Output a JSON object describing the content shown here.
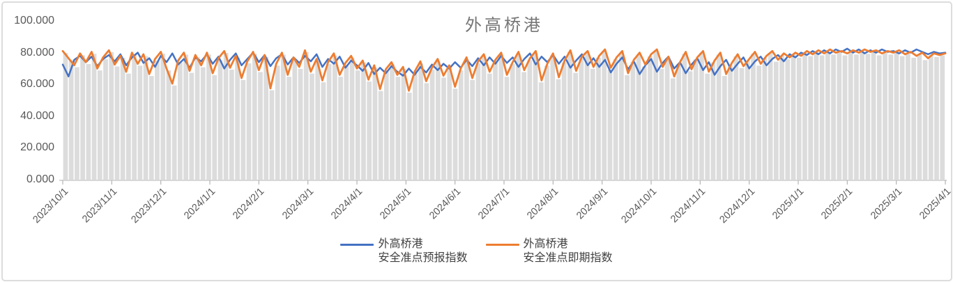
{
  "chart_data": {
    "type": "line",
    "title": "外高桥港",
    "x_tick_labels": [
      "2023/10/1",
      "2023/11/1",
      "2023/12/1",
      "2024/1/1",
      "2024/2/1",
      "2024/3/1",
      "2024/4/1",
      "2024/5/1",
      "2024/6/1",
      "2024/7/1",
      "2024/8/1",
      "2024/9/1",
      "2024/10/1",
      "2024/11/1",
      "2024/12/1",
      "2025/1/1",
      "2025/2/1",
      "2025/3/1",
      "2025/4/1"
    ],
    "y_tick_values": [
      0,
      20,
      40,
      60,
      80,
      100
    ],
    "y_tick_labels": [
      "0.000",
      "20.000",
      "40.000",
      "60.000",
      "80.000",
      "100.000"
    ],
    "ylim": [
      0,
      100
    ],
    "grid": false,
    "legend_position": "bottom",
    "series": [
      {
        "name": "外高桥港\n安全准点预报指数",
        "color": "#4472C4",
        "values": [
          72.5,
          65,
          75.5,
          78,
          74,
          77.5,
          71.5,
          76,
          78.5,
          74.5,
          79,
          72,
          77,
          80,
          73.5,
          76.5,
          71,
          78,
          74,
          79.5,
          72.5,
          76,
          70.5,
          77,
          74.5,
          79,
          73,
          77.5,
          70,
          75.5,
          79.5,
          72,
          76,
          80,
          74,
          78.5,
          71.5,
          76.5,
          79,
          72.5,
          77,
          73.5,
          78,
          74.5,
          79,
          71,
          76,
          73,
          77.5,
          70.5,
          75,
          72,
          68.5,
          73.5,
          66.5,
          70.5,
          67,
          71.5,
          68,
          65.5,
          70,
          66,
          71,
          67.5,
          72.5,
          69,
          73,
          70,
          74,
          70.5,
          75.5,
          71.5,
          76.5,
          72,
          77,
          73,
          78,
          73.5,
          77,
          71,
          76,
          79.5,
          72.5,
          77.5,
          74,
          78.5,
          73,
          77.5,
          70.5,
          75,
          79,
          72,
          76.5,
          71,
          75.5,
          67.5,
          73,
          77,
          69.5,
          74.5,
          66.5,
          72,
          76,
          68,
          73.5,
          77.5,
          70,
          74,
          67,
          72.5,
          76.5,
          69,
          74,
          66,
          71.5,
          75.5,
          68.5,
          73,
          77,
          70,
          74.5,
          77.5,
          72,
          76,
          78.5,
          74.5,
          79,
          77,
          80,
          78.5,
          81,
          79,
          81.5,
          79.5,
          82,
          80.5,
          82.5,
          80,
          82,
          79.5,
          81.5,
          80,
          82,
          80.5,
          81,
          79.5,
          81.5,
          80,
          82,
          80.5,
          79,
          80.5,
          79.5,
          80
        ]
      },
      {
        "name": "外高桥港\n安全准点即期指数",
        "color": "#ED7D31",
        "values": [
          81,
          76.5,
          72,
          79.5,
          74,
          80.5,
          70,
          77,
          81.5,
          72.5,
          78,
          68,
          80,
          73,
          79,
          66.5,
          76,
          80.5,
          70,
          60.5,
          75,
          80,
          68.5,
          78.5,
          72,
          80,
          67,
          76.5,
          81,
          70.5,
          78,
          64,
          74.5,
          80.5,
          69,
          78.5,
          57.5,
          73,
          80,
          66,
          77,
          71,
          81.5,
          68,
          76,
          62.5,
          74,
          79.5,
          66,
          73.5,
          78,
          70,
          75,
          63,
          72,
          57,
          69.5,
          74,
          66,
          71,
          56,
          68,
          74.5,
          62,
          70.5,
          76,
          65.5,
          72,
          58.5,
          70,
          77,
          64,
          74.5,
          79,
          68,
          75.5,
          80,
          66,
          74,
          80.5,
          69,
          76.5,
          81,
          62.5,
          73,
          79.5,
          64.5,
          75,
          81.5,
          68.5,
          77.5,
          81,
          71,
          78,
          82,
          70.5,
          77,
          81,
          67,
          75.5,
          80,
          72.5,
          79,
          82,
          71,
          77.5,
          65,
          74,
          80.5,
          69.5,
          77,
          81,
          68,
          75,
          80,
          66.5,
          73.5,
          79,
          71.5,
          76,
          80.5,
          73,
          78,
          81,
          75.5,
          79.5,
          77,
          80,
          78,
          81,
          79,
          81.5,
          79.5,
          82,
          80,
          81,
          79.5,
          81.5,
          80,
          82,
          80.5,
          81.5,
          79.5,
          81,
          80,
          81.5,
          79,
          80.5,
          78,
          80,
          76.5,
          79.5,
          78.5,
          79.5
        ]
      }
    ],
    "background_bars": {
      "color": "#dcdcdc",
      "follows_series_index": 1
    }
  },
  "colors": {
    "title_text": "#767676",
    "axis_text": "#595959",
    "axis_line": "#c9c9c9",
    "tick_mark": "#b3b3b3",
    "card_border": "#dcdcdc",
    "background": "#ffffff"
  }
}
